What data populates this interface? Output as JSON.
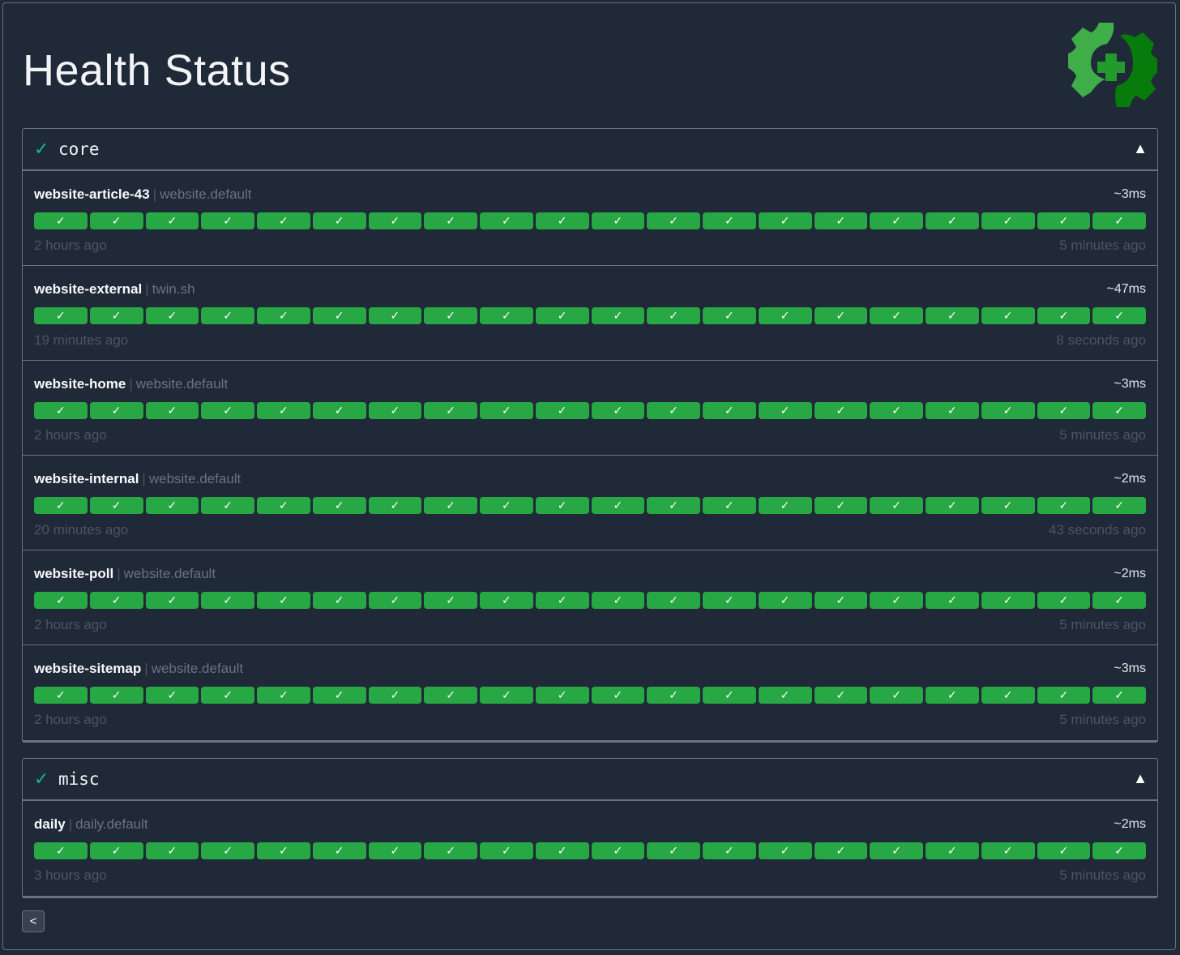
{
  "header": {
    "title": "Health Status",
    "logo_icon": "gear-plus-health-icon"
  },
  "colors": {
    "success": "#28a745",
    "background": "#1f2937",
    "check": "#10b981"
  },
  "groups": [
    {
      "name": "core",
      "status_icon": "✓",
      "toggle_icon": "▲",
      "endpoints": [
        {
          "name": "website-article-43",
          "group": "website.default",
          "response_time": "~3ms",
          "oldest": "2 hours ago",
          "newest": "5 minutes ago",
          "results": [
            "success",
            "success",
            "success",
            "success",
            "success",
            "success",
            "success",
            "success",
            "success",
            "success",
            "success",
            "success",
            "success",
            "success",
            "success",
            "success",
            "success",
            "success",
            "success",
            "success"
          ]
        },
        {
          "name": "website-external",
          "group": "twin.sh",
          "response_time": "~47ms",
          "oldest": "19 minutes ago",
          "newest": "8 seconds ago",
          "results": [
            "success",
            "success",
            "success",
            "success",
            "success",
            "success",
            "success",
            "success",
            "success",
            "success",
            "success",
            "success",
            "success",
            "success",
            "success",
            "success",
            "success",
            "success",
            "success",
            "success"
          ]
        },
        {
          "name": "website-home",
          "group": "website.default",
          "response_time": "~3ms",
          "oldest": "2 hours ago",
          "newest": "5 minutes ago",
          "results": [
            "success",
            "success",
            "success",
            "success",
            "success",
            "success",
            "success",
            "success",
            "success",
            "success",
            "success",
            "success",
            "success",
            "success",
            "success",
            "success",
            "success",
            "success",
            "success",
            "success"
          ]
        },
        {
          "name": "website-internal",
          "group": "website.default",
          "response_time": "~2ms",
          "oldest": "20 minutes ago",
          "newest": "43 seconds ago",
          "results": [
            "success",
            "success",
            "success",
            "success",
            "success",
            "success",
            "success",
            "success",
            "success",
            "success",
            "success",
            "success",
            "success",
            "success",
            "success",
            "success",
            "success",
            "success",
            "success",
            "success"
          ]
        },
        {
          "name": "website-poll",
          "group": "website.default",
          "response_time": "~2ms",
          "oldest": "2 hours ago",
          "newest": "5 minutes ago",
          "results": [
            "success",
            "success",
            "success",
            "success",
            "success",
            "success",
            "success",
            "success",
            "success",
            "success",
            "success",
            "success",
            "success",
            "success",
            "success",
            "success",
            "success",
            "success",
            "success",
            "success"
          ]
        },
        {
          "name": "website-sitemap",
          "group": "website.default",
          "response_time": "~3ms",
          "oldest": "2 hours ago",
          "newest": "5 minutes ago",
          "results": [
            "success",
            "success",
            "success",
            "success",
            "success",
            "success",
            "success",
            "success",
            "success",
            "success",
            "success",
            "success",
            "success",
            "success",
            "success",
            "success",
            "success",
            "success",
            "success",
            "success"
          ]
        }
      ]
    },
    {
      "name": "misc",
      "status_icon": "✓",
      "toggle_icon": "▲",
      "endpoints": [
        {
          "name": "daily",
          "group": "daily.default",
          "response_time": "~2ms",
          "oldest": "3 hours ago",
          "newest": "5 minutes ago",
          "results": [
            "success",
            "success",
            "success",
            "success",
            "success",
            "success",
            "success",
            "success",
            "success",
            "success",
            "success",
            "success",
            "success",
            "success",
            "success",
            "success",
            "success",
            "success",
            "success",
            "success"
          ]
        }
      ]
    }
  ],
  "result_glyph": "✓",
  "pagination": {
    "previous_icon": "<"
  }
}
